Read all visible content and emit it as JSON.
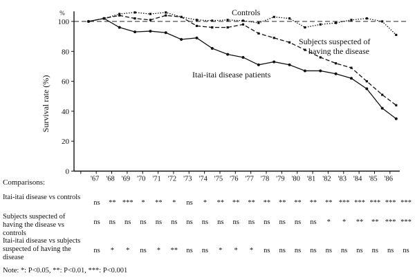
{
  "chart_data": {
    "type": "line",
    "ylabel": "Survival rate (%)",
    "y_unit_mark": "%",
    "ylim": [
      0,
      104
    ],
    "yticks": [
      0,
      20,
      40,
      60,
      80,
      100
    ],
    "x_tick_labels": [
      "'67",
      "'68",
      "'69",
      "'70",
      "'71",
      "'72",
      "'73",
      "'74",
      "'75",
      "'76",
      "'77",
      "'78",
      "'79",
      "'80",
      "'81",
      "'82",
      "'83",
      "'84",
      "'85",
      "'86"
    ],
    "reference_line": 100,
    "series": [
      {
        "name": "Controls",
        "style": "dotted",
        "x": [
          0,
          1,
          2,
          3,
          4,
          5,
          6,
          7,
          8,
          9,
          10,
          11,
          12,
          13,
          14,
          15,
          16,
          17,
          18,
          19,
          19.9
        ],
        "values": [
          100,
          102,
          105,
          106,
          105,
          106,
          103,
          101,
          100.5,
          101,
          100.5,
          99,
          103,
          102,
          96,
          98,
          99,
          101,
          102,
          100,
          91
        ]
      },
      {
        "name": "Subjects suspected of having the disease",
        "style": "dashed",
        "x": [
          0,
          1,
          2,
          3,
          4,
          5,
          6,
          7,
          8,
          9,
          10,
          11,
          12,
          13,
          14,
          15,
          16,
          17,
          18,
          19,
          19.9
        ],
        "values": [
          100,
          102,
          104,
          102,
          101,
          104,
          103,
          97,
          96,
          96,
          98,
          92,
          89,
          86,
          81,
          76,
          72,
          69,
          60,
          51,
          44
        ]
      },
      {
        "name": "Itai-itai disease patients",
        "style": "solid",
        "x": [
          0,
          1,
          2,
          3,
          4,
          5,
          6,
          7,
          8,
          9,
          10,
          11,
          12,
          13,
          14,
          15,
          16,
          17,
          18,
          19,
          19.9
        ],
        "values": [
          100,
          102,
          96,
          93,
          93.5,
          92.5,
          88,
          89,
          82,
          78,
          76,
          71,
          73,
          71,
          67,
          67,
          65,
          62,
          55,
          42,
          35
        ]
      }
    ]
  },
  "comparisons": {
    "title": "Comparisons:",
    "rows": [
      {
        "label": "Itai-itai disease vs controls",
        "cells": [
          "ns",
          "**",
          "***",
          "*",
          "**",
          "*",
          "ns",
          "*",
          "**",
          "**",
          "**",
          "**",
          "**",
          "**",
          "**",
          "**",
          "***",
          "***",
          "***",
          "***",
          "***"
        ]
      },
      {
        "label": "Subjects suspected of having the disease vs controls",
        "cells": [
          "ns",
          "ns",
          "ns",
          "ns",
          "ns",
          "ns",
          "ns",
          "ns",
          "ns",
          "ns",
          "ns",
          "ns",
          "ns",
          "ns",
          "ns",
          "*",
          "*",
          "**",
          "**",
          "***",
          "***"
        ]
      },
      {
        "label": "Itai-itai disease vs subjects suspected of having the disease",
        "cells": [
          "ns",
          "*",
          "*",
          "ns",
          "*",
          "**",
          "ns",
          "ns",
          "*",
          "*",
          "*",
          "ns",
          "ns",
          "ns",
          "ns",
          "ns",
          "ns",
          "ns",
          "ns",
          "ns",
          "ns"
        ]
      }
    ],
    "note": "Note: *: P<0.05, **: P<0.01, ***: P<0.001"
  }
}
